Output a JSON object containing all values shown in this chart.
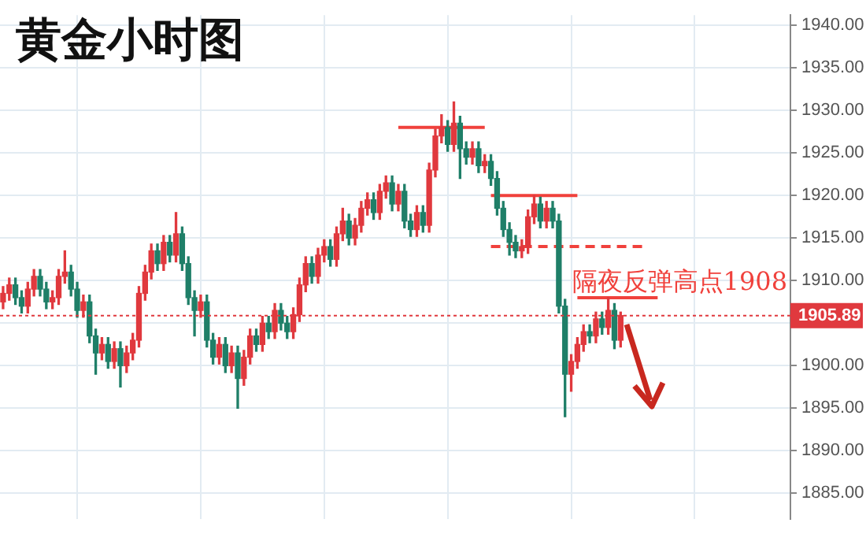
{
  "chart_data": {
    "type": "candlestick",
    "title": "黄金小时图",
    "categories": [
      null,
      null,
      null,
      null,
      null,
      null,
      null,
      null,
      null,
      null,
      null,
      null,
      null,
      null,
      null,
      null,
      null,
      null,
      null,
      null,
      null,
      null,
      null,
      null,
      null,
      null,
      null,
      null,
      null,
      null,
      null,
      null,
      null,
      null,
      null,
      null,
      null,
      null,
      null,
      null,
      null,
      null,
      null,
      null,
      null,
      null,
      null,
      null,
      null,
      null,
      null,
      null,
      null,
      null,
      null,
      null,
      null,
      null,
      null,
      null,
      null,
      null,
      null,
      null,
      null,
      null,
      null,
      null,
      null,
      null,
      null,
      null,
      null,
      null,
      null,
      null,
      null,
      null,
      null,
      null,
      null,
      null,
      null,
      null,
      null,
      null,
      null,
      null,
      null,
      null,
      null,
      null,
      null,
      null,
      null,
      null,
      null,
      null,
      null,
      null,
      null,
      null,
      null,
      null,
      null,
      null,
      null,
      null,
      null,
      null,
      null,
      null,
      null,
      null,
      null,
      null,
      null,
      null,
      null,
      null,
      null,
      null,
      null,
      null,
      null,
      null,
      null,
      null
    ],
    "ohlc": [
      [
        1907.5,
        1909.3,
        1906.7,
        1908.5
      ],
      [
        1908.5,
        1910.3,
        1907.7,
        1909.5
      ],
      [
        1909.5,
        1910.3,
        1907.2,
        1908.0
      ],
      [
        1908.0,
        1908.8,
        1906.2,
        1907.0
      ],
      [
        1907.0,
        1909.8,
        1906.2,
        1909.0
      ],
      [
        1909.0,
        1911.3,
        1908.2,
        1910.5
      ],
      [
        1910.5,
        1911.3,
        1908.2,
        1909.0
      ],
      [
        1909.0,
        1909.8,
        1906.7,
        1907.5
      ],
      [
        1907.5,
        1908.8,
        1906.7,
        1908.0
      ],
      [
        1908.0,
        1911.3,
        1907.2,
        1910.5
      ],
      [
        1910.5,
        1913.5,
        1909.7,
        1911.0
      ],
      [
        1911.0,
        1911.8,
        1908.2,
        1909.0
      ],
      [
        1909.0,
        1909.8,
        1905.7,
        1906.5
      ],
      [
        1906.5,
        1908.3,
        1905.7,
        1907.5
      ],
      [
        1907.5,
        1908.3,
        1902.7,
        1903.5
      ],
      [
        1903.5,
        1904.3,
        1899.0,
        1901.5
      ],
      [
        1901.5,
        1903.3,
        1900.7,
        1902.5
      ],
      [
        1902.5,
        1903.3,
        1899.7,
        1900.5
      ],
      [
        1900.5,
        1902.8,
        1899.7,
        1902.0
      ],
      [
        1902.0,
        1902.8,
        1897.5,
        1900.0
      ],
      [
        1900.0,
        1902.3,
        1899.2,
        1901.5
      ],
      [
        1901.5,
        1903.8,
        1900.7,
        1903.0
      ],
      [
        1903.0,
        1909.3,
        1902.2,
        1908.5
      ],
      [
        1908.5,
        1911.8,
        1907.7,
        1911.0
      ],
      [
        1911.0,
        1914.3,
        1910.2,
        1913.5
      ],
      [
        1913.5,
        1914.3,
        1911.2,
        1912.0
      ],
      [
        1912.0,
        1915.3,
        1911.2,
        1914.5
      ],
      [
        1914.5,
        1915.3,
        1912.2,
        1913.0
      ],
      [
        1913.0,
        1918.0,
        1912.2,
        1915.5
      ],
      [
        1915.5,
        1916.3,
        1911.2,
        1912.0
      ],
      [
        1912.0,
        1912.8,
        1907.2,
        1908.0
      ],
      [
        1908.0,
        1908.8,
        1903.5,
        1906.5
      ],
      [
        1906.5,
        1908.3,
        1905.7,
        1907.5
      ],
      [
        1907.5,
        1908.3,
        1902.2,
        1903.0
      ],
      [
        1903.0,
        1903.8,
        1900.2,
        1901.0
      ],
      [
        1901.0,
        1903.3,
        1900.2,
        1902.5
      ],
      [
        1902.5,
        1903.3,
        1899.2,
        1900.0
      ],
      [
        1900.0,
        1902.3,
        1899.2,
        1901.5
      ],
      [
        1901.5,
        1902.3,
        1895.0,
        1898.5
      ],
      [
        1898.5,
        1901.8,
        1897.7,
        1901.0
      ],
      [
        1901.0,
        1904.3,
        1900.2,
        1903.5
      ],
      [
        1903.5,
        1904.3,
        1901.7,
        1902.5
      ],
      [
        1902.5,
        1905.8,
        1901.7,
        1905.0
      ],
      [
        1905.0,
        1905.8,
        1903.2,
        1904.0
      ],
      [
        1904.0,
        1907.3,
        1903.2,
        1906.5
      ],
      [
        1906.5,
        1907.3,
        1904.2,
        1905.0
      ],
      [
        1905.0,
        1905.8,
        1903.2,
        1904.0
      ],
      [
        1904.0,
        1906.8,
        1903.2,
        1906.0
      ],
      [
        1906.0,
        1910.3,
        1905.2,
        1909.5
      ],
      [
        1909.5,
        1912.8,
        1908.7,
        1912.0
      ],
      [
        1912.0,
        1912.8,
        1909.7,
        1910.5
      ],
      [
        1910.5,
        1913.8,
        1909.7,
        1913.0
      ],
      [
        1913.0,
        1914.8,
        1912.2,
        1914.0
      ],
      [
        1914.0,
        1914.8,
        1911.7,
        1912.5
      ],
      [
        1912.5,
        1916.3,
        1911.7,
        1915.5
      ],
      [
        1915.5,
        1918.5,
        1914.7,
        1917.0
      ],
      [
        1917.0,
        1917.8,
        1914.2,
        1915.0
      ],
      [
        1915.0,
        1917.3,
        1914.2,
        1916.5
      ],
      [
        1916.5,
        1919.3,
        1915.7,
        1918.5
      ],
      [
        1918.5,
        1920.3,
        1917.7,
        1919.5
      ],
      [
        1919.5,
        1920.3,
        1917.2,
        1918.0
      ],
      [
        1918.0,
        1921.3,
        1917.2,
        1920.5
      ],
      [
        1920.5,
        1922.3,
        1919.7,
        1921.5
      ],
      [
        1921.5,
        1922.3,
        1918.2,
        1919.0
      ],
      [
        1919.0,
        1921.3,
        1918.2,
        1920.5
      ],
      [
        1920.5,
        1921.3,
        1916.2,
        1917.0
      ],
      [
        1917.0,
        1917.8,
        1915.2,
        1916.0
      ],
      [
        1916.0,
        1918.8,
        1915.2,
        1918.0
      ],
      [
        1918.0,
        1918.8,
        1915.7,
        1916.5
      ],
      [
        1916.5,
        1923.8,
        1915.7,
        1923.0
      ],
      [
        1923.0,
        1927.8,
        1922.2,
        1927.0
      ],
      [
        1927.0,
        1929.5,
        1926.2,
        1928.0
      ],
      [
        1928.0,
        1928.8,
        1925.2,
        1926.0
      ],
      [
        1926.0,
        1931.0,
        1925.2,
        1928.5
      ],
      [
        1928.5,
        1929.3,
        1922.0,
        1925.5
      ],
      [
        1925.5,
        1926.3,
        1923.7,
        1924.5
      ],
      [
        1924.5,
        1926.3,
        1923.7,
        1925.5
      ],
      [
        1925.5,
        1926.3,
        1922.7,
        1923.5
      ],
      [
        1923.5,
        1924.8,
        1922.7,
        1924.0
      ],
      [
        1924.0,
        1924.8,
        1921.2,
        1922.0
      ],
      [
        1922.0,
        1922.8,
        1917.7,
        1918.5
      ],
      [
        1918.5,
        1919.3,
        1915.2,
        1916.0
      ],
      [
        1916.0,
        1916.8,
        1913.0,
        1914.5
      ],
      [
        1914.5,
        1915.3,
        1912.7,
        1913.5
      ],
      [
        1913.5,
        1914.8,
        1912.7,
        1914.0
      ],
      [
        1914.0,
        1918.3,
        1913.2,
        1917.5
      ],
      [
        1917.5,
        1920.0,
        1916.7,
        1919.0
      ],
      [
        1919.0,
        1919.8,
        1916.2,
        1917.0
      ],
      [
        1917.0,
        1919.3,
        1916.2,
        1918.5
      ],
      [
        1918.5,
        1919.3,
        1916.2,
        1917.0
      ],
      [
        1917.0,
        1917.8,
        1906.2,
        1907.0
      ],
      [
        1907.0,
        1907.8,
        1894.0,
        1899.0
      ],
      [
        1899.0,
        1901.3,
        1897.0,
        1900.5
      ],
      [
        1900.5,
        1903.3,
        1899.7,
        1902.5
      ],
      [
        1902.5,
        1904.8,
        1901.7,
        1904.0
      ],
      [
        1904.0,
        1904.8,
        1902.7,
        1903.5
      ],
      [
        1903.5,
        1906.3,
        1902.7,
        1905.5
      ],
      [
        1905.5,
        1906.3,
        1903.7,
        1904.5
      ],
      [
        1904.5,
        1908.0,
        1903.7,
        1906.5
      ],
      [
        1906.5,
        1907.3,
        1902.0,
        1903.0
      ],
      [
        1903.0,
        1906.3,
        1902.2,
        1905.89
      ],
      null,
      null,
      null,
      null,
      null,
      null,
      null,
      null,
      null,
      null,
      null,
      null,
      null,
      null,
      null,
      null,
      null,
      null,
      null,
      null,
      null,
      null,
      null,
      null,
      null,
      null,
      null
    ],
    "colors": [
      "#e0393e",
      "#e0393e",
      "#1f7f68",
      "#1f7f68",
      "#e0393e",
      "#e0393e",
      "#1f7f68",
      "#1f7f68",
      "#e0393e",
      "#e0393e",
      "#e0393e",
      "#1f7f68",
      "#1f7f68",
      "#e0393e",
      "#1f7f68",
      "#1f7f68",
      "#e0393e",
      "#1f7f68",
      "#e0393e",
      "#1f7f68",
      "#e0393e",
      "#e0393e",
      "#e0393e",
      "#e0393e",
      "#e0393e",
      "#1f7f68",
      "#e0393e",
      "#1f7f68",
      "#e0393e",
      "#1f7f68",
      "#1f7f68",
      "#1f7f68",
      "#e0393e",
      "#1f7f68",
      "#1f7f68",
      "#e0393e",
      "#1f7f68",
      "#e0393e",
      "#1f7f68",
      "#e0393e",
      "#e0393e",
      "#1f7f68",
      "#e0393e",
      "#1f7f68",
      "#e0393e",
      "#1f7f68",
      "#1f7f68",
      "#e0393e",
      "#e0393e",
      "#e0393e",
      "#1f7f68",
      "#e0393e",
      "#e0393e",
      "#1f7f68",
      "#e0393e",
      "#e0393e",
      "#1f7f68",
      "#e0393e",
      "#e0393e",
      "#e0393e",
      "#1f7f68",
      "#e0393e",
      "#e0393e",
      "#1f7f68",
      "#e0393e",
      "#1f7f68",
      "#1f7f68",
      "#e0393e",
      "#1f7f68",
      "#e0393e",
      "#e0393e",
      "#e0393e",
      "#1f7f68",
      "#e0393e",
      "#1f7f68",
      "#1f7f68",
      "#e0393e",
      "#1f7f68",
      "#e0393e",
      "#1f7f68",
      "#1f7f68",
      "#1f7f68",
      "#1f7f68",
      "#1f7f68",
      "#e0393e",
      "#e0393e",
      "#e0393e",
      "#1f7f68",
      "#e0393e",
      "#1f7f68",
      "#1f7f68",
      "#1f7f68",
      "#e0393e",
      "#e0393e",
      "#e0393e",
      "#1f7f68",
      "#e0393e",
      "#1f7f68",
      "#e0393e",
      "#1f7f68",
      "#e0393e",
      null,
      null,
      null,
      null,
      null,
      null,
      null,
      null,
      null,
      null,
      null,
      null,
      null,
      null,
      null,
      null,
      null,
      null,
      null,
      null,
      null,
      null,
      null,
      null,
      null,
      null,
      null
    ],
    "series": [
      {
        "type": "line",
        "color": "#f0413c",
        "line_style": "solid",
        "values": [
          null,
          null,
          null,
          null,
          null,
          null,
          null,
          null,
          null,
          null,
          null,
          null,
          null,
          null,
          null,
          null,
          null,
          null,
          null,
          null,
          null,
          null,
          null,
          null,
          null,
          null,
          null,
          null,
          null,
          null,
          null,
          null,
          null,
          null,
          null,
          null,
          null,
          null,
          null,
          null,
          null,
          null,
          null,
          null,
          null,
          null,
          null,
          null,
          null,
          null,
          null,
          null,
          null,
          null,
          null,
          null,
          null,
          null,
          null,
          null,
          null,
          null,
          null,
          null,
          1928,
          1928,
          1928,
          1928,
          1928,
          1928,
          1928,
          1928,
          1928,
          1928,
          1928,
          1928,
          1928,
          1928,
          1928,
          null,
          null,
          null,
          null,
          null,
          null,
          null,
          null,
          null,
          null,
          null,
          null,
          null,
          null,
          null,
          null,
          null,
          null,
          null,
          null,
          null,
          null,
          null,
          null,
          null,
          null,
          null,
          null,
          null,
          null,
          null,
          null,
          null,
          null,
          null,
          null,
          null,
          null,
          null,
          null,
          null,
          null,
          null,
          null,
          null,
          null,
          null,
          null,
          null
        ]
      },
      {
        "type": "line",
        "color": "#f0413c",
        "line_style": "solid",
        "values": [
          null,
          null,
          null,
          null,
          null,
          null,
          null,
          null,
          null,
          null,
          null,
          null,
          null,
          null,
          null,
          null,
          null,
          null,
          null,
          null,
          null,
          null,
          null,
          null,
          null,
          null,
          null,
          null,
          null,
          null,
          null,
          null,
          null,
          null,
          null,
          null,
          null,
          null,
          null,
          null,
          null,
          null,
          null,
          null,
          null,
          null,
          null,
          null,
          null,
          null,
          null,
          null,
          null,
          null,
          null,
          null,
          null,
          null,
          null,
          null,
          null,
          null,
          null,
          null,
          null,
          null,
          null,
          null,
          null,
          null,
          null,
          null,
          null,
          null,
          null,
          null,
          null,
          null,
          null,
          1920,
          1920,
          1920,
          1920,
          1920,
          1920,
          1920,
          1920,
          1920,
          1920,
          1920,
          1920,
          1920,
          1920,
          1920,
          null,
          null,
          null,
          null,
          null,
          null,
          null,
          null,
          null,
          null,
          null,
          null,
          null,
          null,
          null,
          null,
          null,
          null,
          null,
          null,
          null,
          null,
          null,
          null,
          null,
          null,
          null,
          null,
          null,
          null,
          null,
          null,
          null,
          null
        ]
      },
      {
        "type": "line",
        "color": "#f0413c",
        "line_style": "dashed",
        "values": [
          null,
          null,
          null,
          null,
          null,
          null,
          null,
          null,
          null,
          null,
          null,
          null,
          null,
          null,
          null,
          null,
          null,
          null,
          null,
          null,
          null,
          null,
          null,
          null,
          null,
          null,
          null,
          null,
          null,
          null,
          null,
          null,
          null,
          null,
          null,
          null,
          null,
          null,
          null,
          null,
          null,
          null,
          null,
          null,
          null,
          null,
          null,
          null,
          null,
          null,
          null,
          null,
          null,
          null,
          null,
          null,
          null,
          null,
          null,
          null,
          null,
          null,
          null,
          null,
          null,
          null,
          null,
          null,
          null,
          null,
          null,
          null,
          null,
          null,
          null,
          null,
          null,
          null,
          null,
          1914,
          1914,
          1914,
          1914,
          1914,
          1914,
          1914,
          1914,
          1914,
          1914,
          1914,
          1914,
          1914,
          1914,
          1914,
          1914,
          1914,
          1914,
          1914,
          1914,
          1914,
          1914,
          1914,
          1914,
          1914,
          1914,
          null,
          null,
          null,
          null,
          null,
          null,
          null,
          null,
          null,
          null,
          null,
          null,
          null,
          null,
          null,
          null,
          null,
          null,
          null,
          null,
          null,
          null,
          null
        ]
      },
      {
        "type": "line",
        "color": "#f0413c",
        "line_style": "solid",
        "values": [
          null,
          null,
          null,
          null,
          null,
          null,
          null,
          null,
          null,
          null,
          null,
          null,
          null,
          null,
          null,
          null,
          null,
          null,
          null,
          null,
          null,
          null,
          null,
          null,
          null,
          null,
          null,
          null,
          null,
          null,
          null,
          null,
          null,
          null,
          null,
          null,
          null,
          null,
          null,
          null,
          null,
          null,
          null,
          null,
          null,
          null,
          null,
          null,
          null,
          null,
          null,
          null,
          null,
          null,
          null,
          null,
          null,
          null,
          null,
          null,
          null,
          null,
          null,
          null,
          null,
          null,
          null,
          null,
          null,
          null,
          null,
          null,
          null,
          null,
          null,
          null,
          null,
          null,
          null,
          null,
          null,
          null,
          null,
          null,
          null,
          null,
          null,
          null,
          null,
          null,
          null,
          null,
          null,
          1908,
          1908,
          1908,
          1908,
          1908,
          1908,
          1908,
          1908,
          1908,
          1908,
          1908,
          1908,
          1908,
          1908,
          null,
          null,
          null,
          null,
          null,
          null,
          null,
          null,
          null,
          null,
          null,
          null,
          null,
          null,
          null,
          null,
          null,
          null,
          null,
          null,
          null
        ]
      }
    ],
    "ylim": [
      1882,
      1941.2
    ],
    "yticks": [
      {
        "value": 1885,
        "label": "1885.00"
      },
      {
        "value": 1890,
        "label": "1890.00"
      },
      {
        "value": 1895,
        "label": "1895.00"
      },
      {
        "value": 1900,
        "label": "1900.00"
      },
      {
        "value": 1905,
        "label": null
      },
      {
        "value": 1910,
        "label": "1910.00"
      },
      {
        "value": 1915,
        "label": "1915.00"
      },
      {
        "value": 1920,
        "label": "1920.00"
      },
      {
        "value": 1925,
        "label": "1925.00"
      },
      {
        "value": 1930,
        "label": "1930.00"
      },
      {
        "value": 1935,
        "label": "1935.00"
      },
      {
        "value": 1940,
        "label": "1940.00"
      }
    ],
    "ref_lines": [
      {
        "axis": "y",
        "value": 1905.89,
        "label": "1905.89",
        "color": "#e0393e",
        "line_style": "dotted"
      }
    ],
    "annotations": [
      "隔夜反弹高点1908"
    ],
    "grid": true,
    "legend": false,
    "tick_labels": "y"
  }
}
